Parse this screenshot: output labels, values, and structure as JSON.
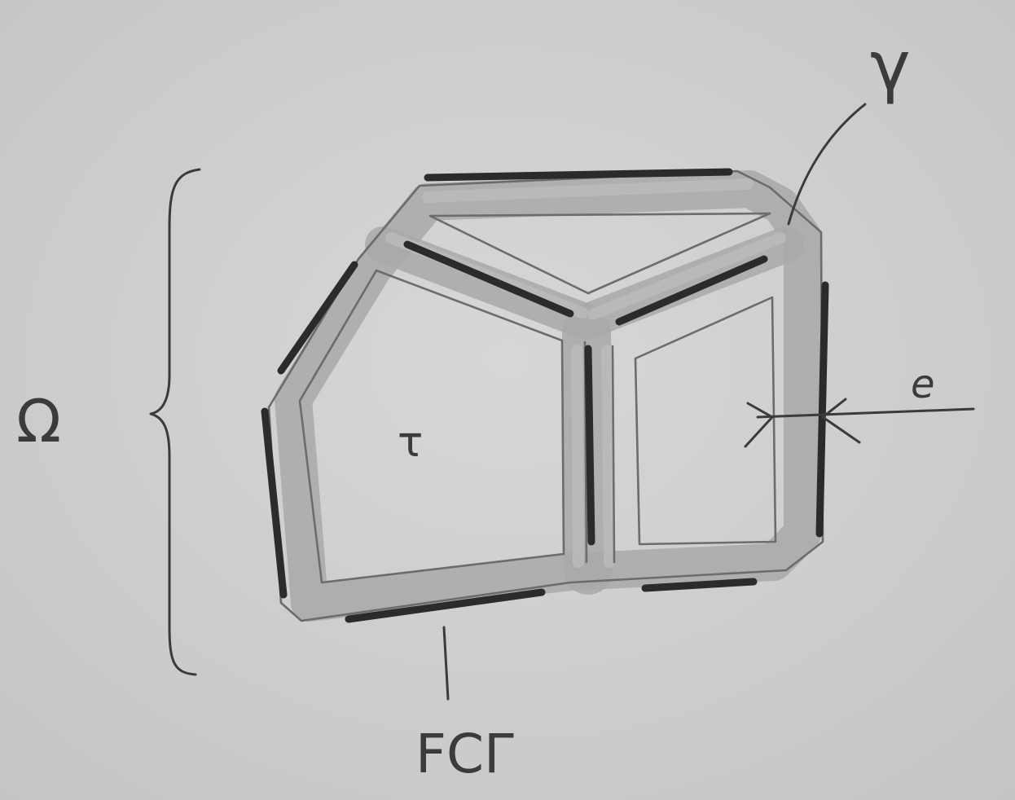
{
  "labels": {
    "omega": "Ω",
    "gamma": "γ",
    "thickness": "e",
    "domain_t": "τ",
    "fc_gamma": "FCΓ"
  },
  "colors": {
    "paper": "#cfd0d0",
    "graphite_band": "#a9aaab",
    "graphite_dark": "#2a2b2c",
    "ink": "#3a3b3c"
  }
}
